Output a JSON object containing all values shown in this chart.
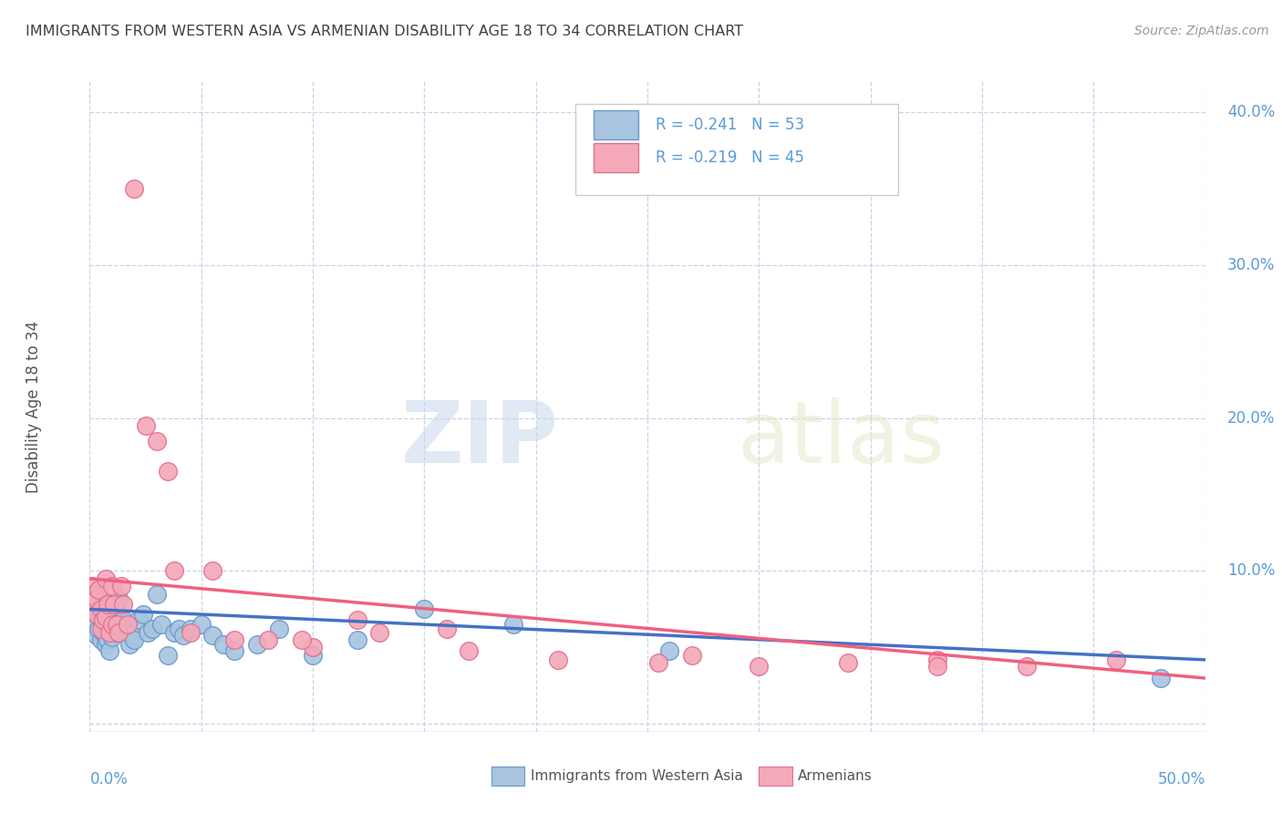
{
  "title": "IMMIGRANTS FROM WESTERN ASIA VS ARMENIAN DISABILITY AGE 18 TO 34 CORRELATION CHART",
  "source": "Source: ZipAtlas.com",
  "ylabel": "Disability Age 18 to 34",
  "yticks": [
    0.0,
    0.1,
    0.2,
    0.3,
    0.4
  ],
  "ytick_labels": [
    "",
    "10.0%",
    "20.0%",
    "30.0%",
    "40.0%"
  ],
  "xmin": 0.0,
  "xmax": 0.5,
  "ymin": -0.005,
  "ymax": 0.42,
  "blue_scatter_color": "#a8c4e0",
  "blue_edge_color": "#6699cc",
  "pink_scatter_color": "#f4a8b8",
  "pink_edge_color": "#e07090",
  "blue_line_color": "#4472c4",
  "pink_line_color": "#f06080",
  "legend_r_blue": "R = -0.241",
  "legend_n_blue": "N = 53",
  "legend_r_pink": "R = -0.219",
  "legend_n_pink": "N = 45",
  "legend_label_blue": "Immigrants from Western Asia",
  "legend_label_pink": "Armenians",
  "title_color": "#404040",
  "axis_label_color": "#5b9bd5",
  "watermark_zip": "ZIP",
  "watermark_atlas": "atlas",
  "blue_line_start_y": 0.075,
  "blue_line_end_y": 0.042,
  "pink_line_start_y": 0.095,
  "pink_line_end_y": 0.03,
  "blue_x": [
    0.001,
    0.002,
    0.002,
    0.003,
    0.003,
    0.004,
    0.004,
    0.005,
    0.005,
    0.006,
    0.006,
    0.007,
    0.007,
    0.007,
    0.008,
    0.008,
    0.009,
    0.009,
    0.01,
    0.01,
    0.011,
    0.012,
    0.012,
    0.013,
    0.014,
    0.015,
    0.016,
    0.018,
    0.019,
    0.02,
    0.022,
    0.024,
    0.026,
    0.028,
    0.03,
    0.032,
    0.035,
    0.038,
    0.04,
    0.042,
    0.045,
    0.05,
    0.055,
    0.06,
    0.065,
    0.075,
    0.085,
    0.1,
    0.12,
    0.15,
    0.19,
    0.26,
    0.48
  ],
  "blue_y": [
    0.075,
    0.078,
    0.068,
    0.072,
    0.058,
    0.073,
    0.062,
    0.068,
    0.055,
    0.07,
    0.06,
    0.065,
    0.058,
    0.052,
    0.06,
    0.055,
    0.063,
    0.048,
    0.057,
    0.068,
    0.075,
    0.078,
    0.06,
    0.082,
    0.065,
    0.068,
    0.06,
    0.052,
    0.058,
    0.055,
    0.068,
    0.072,
    0.06,
    0.062,
    0.085,
    0.065,
    0.045,
    0.06,
    0.062,
    0.058,
    0.062,
    0.065,
    0.058,
    0.052,
    0.048,
    0.052,
    0.062,
    0.045,
    0.055,
    0.075,
    0.065,
    0.048,
    0.03
  ],
  "pink_x": [
    0.001,
    0.002,
    0.002,
    0.003,
    0.003,
    0.004,
    0.005,
    0.005,
    0.006,
    0.007,
    0.007,
    0.008,
    0.009,
    0.01,
    0.01,
    0.011,
    0.012,
    0.013,
    0.014,
    0.015,
    0.017,
    0.02,
    0.025,
    0.03,
    0.035,
    0.038,
    0.045,
    0.055,
    0.065,
    0.08,
    0.1,
    0.13,
    0.17,
    0.21,
    0.255,
    0.3,
    0.34,
    0.38,
    0.42,
    0.46,
    0.095,
    0.12,
    0.16,
    0.27,
    0.38
  ],
  "pink_y": [
    0.09,
    0.085,
    0.078,
    0.082,
    0.072,
    0.088,
    0.075,
    0.062,
    0.068,
    0.095,
    0.07,
    0.078,
    0.06,
    0.09,
    0.065,
    0.078,
    0.065,
    0.06,
    0.09,
    0.078,
    0.065,
    0.35,
    0.195,
    0.185,
    0.165,
    0.1,
    0.06,
    0.1,
    0.055,
    0.055,
    0.05,
    0.06,
    0.048,
    0.042,
    0.04,
    0.038,
    0.04,
    0.042,
    0.038,
    0.042,
    0.055,
    0.068,
    0.062,
    0.045,
    0.038
  ]
}
